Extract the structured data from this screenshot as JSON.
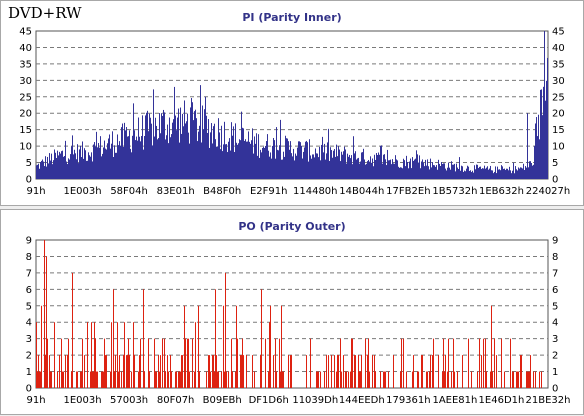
{
  "disc_type": "DVD+RW",
  "colors": {
    "pi": "#333399",
    "po": "#dd2211",
    "title": "#333388",
    "grid": "#7a7a7a",
    "panel_border": "#a8a8a8"
  },
  "chart_data": [
    {
      "id": "pi",
      "type": "bar",
      "title": "PI (Parity Inner)",
      "xlabel": "",
      "ylabel": "",
      "ylim": [
        0,
        45
      ],
      "yticks": [
        0,
        5,
        10,
        15,
        20,
        25,
        30,
        35,
        40,
        45
      ],
      "x_ticks": [
        "91h",
        "1E003h",
        "58F04h",
        "83E01h",
        "B48F0h",
        "E2F91h",
        "114480h",
        "14B044h",
        "17FB2Eh",
        "1B5732h",
        "1EB632h",
        "224027h"
      ],
      "grid": "horizontal-dashed",
      "profile_x": [
        0,
        0.02,
        0.05,
        0.1,
        0.15,
        0.2,
        0.25,
        0.28,
        0.31,
        0.35,
        0.4,
        0.45,
        0.5,
        0.55,
        0.6,
        0.65,
        0.7,
        0.75,
        0.8,
        0.85,
        0.9,
        0.93,
        0.95,
        0.97,
        0.98,
        0.99,
        1.0
      ],
      "values": [
        4,
        6,
        8,
        9,
        12,
        15,
        18,
        19,
        18,
        16,
        13,
        11,
        10,
        9,
        8,
        7,
        6,
        5.5,
        4.5,
        3.5,
        3,
        3,
        3.5,
        5,
        12,
        28,
        44
      ],
      "spikes": [
        {
          "x": 0.19,
          "y": 23
        },
        {
          "x": 0.27,
          "y": 28
        },
        {
          "x": 0.33,
          "y": 25
        },
        {
          "x": 0.62,
          "y": 13
        },
        {
          "x": 0.96,
          "y": 20
        },
        {
          "x": 0.995,
          "y": 45
        }
      ]
    },
    {
      "id": "po",
      "type": "bar",
      "title": "PO (Parity Outer)",
      "xlabel": "",
      "ylabel": "",
      "ylim": [
        0,
        9
      ],
      "yticks": [
        0,
        1,
        2,
        3,
        4,
        5,
        6,
        7,
        8,
        9
      ],
      "x_ticks": [
        "91h",
        "1E003h",
        "57003h",
        "80F07h",
        "B09EBh",
        "DF1D6h",
        "11039Dh",
        "144EEDh",
        "179361h",
        "1AEE81h",
        "1E46D1h",
        "21BE32h"
      ],
      "grid": "horizontal-dashed",
      "spikes": [
        {
          "x": 0.01,
          "y": 5
        },
        {
          "x": 0.015,
          "y": 9
        },
        {
          "x": 0.02,
          "y": 8
        },
        {
          "x": 0.07,
          "y": 7
        },
        {
          "x": 0.15,
          "y": 6
        },
        {
          "x": 0.21,
          "y": 6
        },
        {
          "x": 0.29,
          "y": 5
        },
        {
          "x": 0.35,
          "y": 6
        },
        {
          "x": 0.37,
          "y": 7
        },
        {
          "x": 0.44,
          "y": 6
        },
        {
          "x": 0.48,
          "y": 5
        },
        {
          "x": 0.89,
          "y": 5
        }
      ]
    }
  ]
}
